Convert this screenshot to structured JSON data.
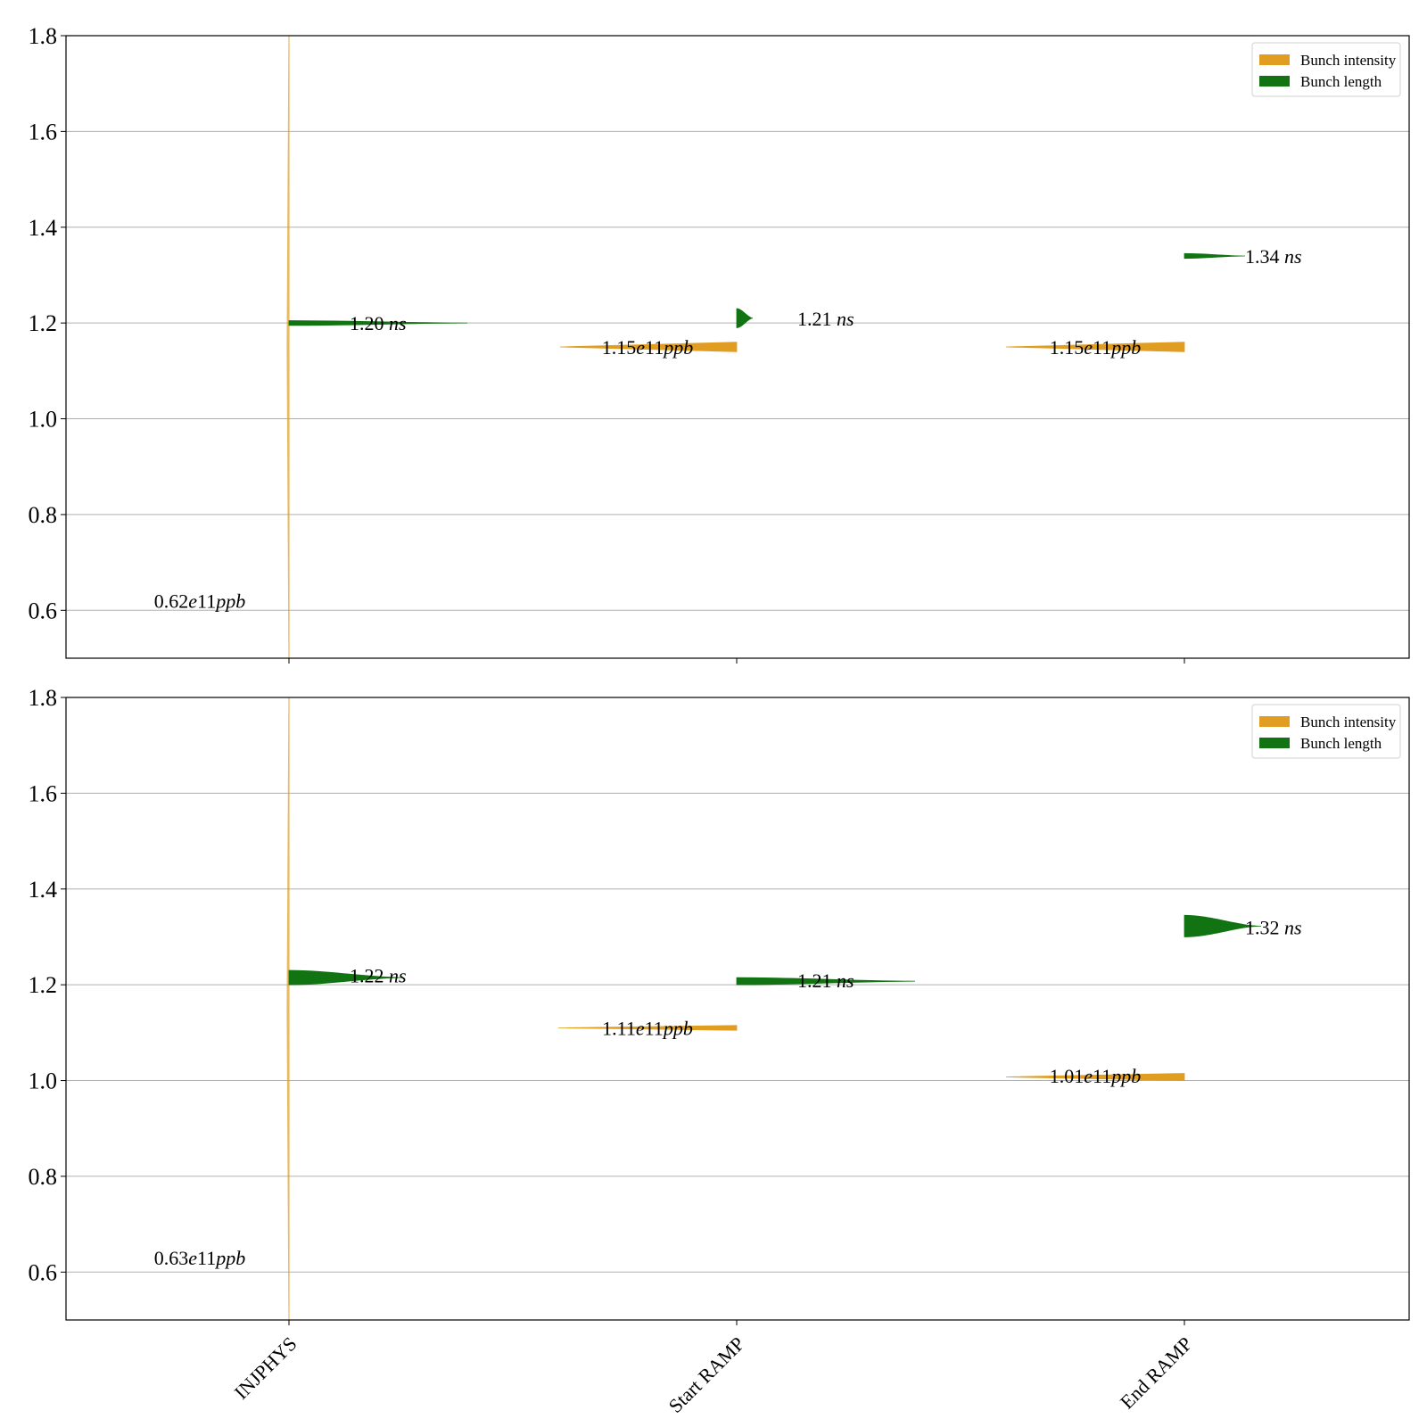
{
  "colors": {
    "intensity": "#E09D22",
    "length": "#127312",
    "grid": "#b0b0b0",
    "spine": "#000000"
  },
  "chart_data": [
    {
      "type": "violin",
      "categories": [
        "INJPHYS",
        "Start RAMP",
        "End RAMP"
      ],
      "ylim": [
        0.5,
        1.8
      ],
      "yticks": [
        "0.6",
        "0.8",
        "1.0",
        "1.2",
        "1.4",
        "1.6",
        "1.8"
      ],
      "grid": true,
      "legend_position": "top-right",
      "legend": [
        "Bunch intensity",
        "Bunch length"
      ],
      "series": [
        {
          "name": "Bunch intensity",
          "side": "left",
          "means": [
            0.62,
            1.15,
            1.15
          ],
          "annotation_values": [
            "0.62e11",
            "1.15e11",
            "1.15e11"
          ],
          "annotation_unit": "ppb"
        },
        {
          "name": "Bunch length",
          "side": "right",
          "means": [
            1.2,
            1.21,
            1.34
          ],
          "annotation_values": [
            "1.20",
            "1.21",
            "1.34"
          ],
          "annotation_unit": "ns"
        }
      ]
    },
    {
      "type": "violin",
      "categories": [
        "INJPHYS",
        "Start RAMP",
        "End RAMP"
      ],
      "ylim": [
        0.5,
        1.8
      ],
      "yticks": [
        "0.6",
        "0.8",
        "1.0",
        "1.2",
        "1.4",
        "1.6",
        "1.8"
      ],
      "grid": true,
      "legend_position": "top-right",
      "legend": [
        "Bunch intensity",
        "Bunch length"
      ],
      "series": [
        {
          "name": "Bunch intensity",
          "side": "left",
          "means": [
            0.63,
            1.11,
            1.01
          ],
          "annotation_values": [
            "0.63e11",
            "1.11e11",
            "1.01e11"
          ],
          "annotation_unit": "ppb"
        },
        {
          "name": "Bunch length",
          "side": "right",
          "means": [
            1.22,
            1.21,
            1.32
          ],
          "annotation_values": [
            "1.22",
            "1.21",
            "1.32"
          ],
          "annotation_unit": "ns"
        }
      ]
    }
  ]
}
